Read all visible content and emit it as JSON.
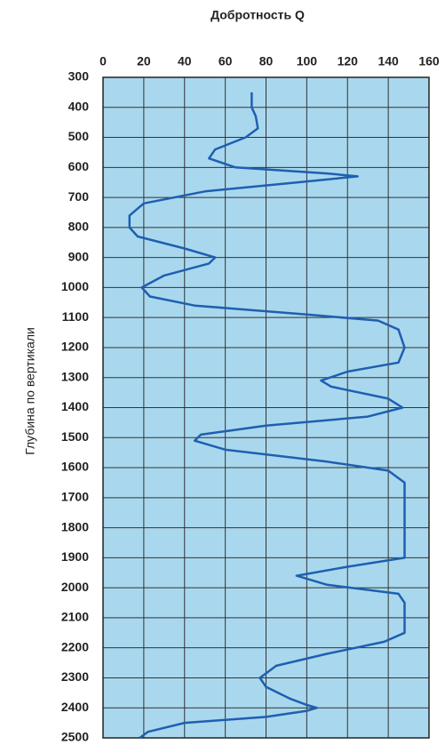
{
  "chart_data": {
    "type": "line",
    "title": "Добротность Q",
    "y_label": "Глубина по вертикали",
    "xlim": [
      0,
      160
    ],
    "xticks": [
      0,
      20,
      40,
      60,
      80,
      100,
      120,
      140,
      160
    ],
    "ylim": [
      300,
      2500
    ],
    "yticks": [
      300,
      400,
      500,
      600,
      700,
      800,
      900,
      1000,
      1100,
      1200,
      1300,
      1400,
      1500,
      1600,
      1700,
      1800,
      1900,
      2000,
      2100,
      2200,
      2300,
      2400,
      2500
    ],
    "y_inverted": true,
    "grid": true,
    "background": "#a9d8ee",
    "y": [
      350,
      400,
      430,
      470,
      500,
      540,
      570,
      600,
      620,
      630,
      650,
      680,
      720,
      760,
      800,
      830,
      870,
      900,
      920,
      960,
      1000,
      1030,
      1060,
      1090,
      1110,
      1140,
      1200,
      1250,
      1280,
      1310,
      1330,
      1370,
      1400,
      1430,
      1460,
      1490,
      1510,
      1540,
      1580,
      1610,
      1650,
      1900,
      1930,
      1960,
      1990,
      2020,
      2050,
      2150,
      2180,
      2220,
      2260,
      2300,
      2330,
      2370,
      2390,
      2400,
      2410,
      2430,
      2450,
      2480,
      2500
    ],
    "series": [
      {
        "color": "#1f5fb0",
        "values": [
          73,
          73,
          75,
          76,
          70,
          55,
          52,
          65,
          110,
          125,
          95,
          50,
          20,
          13,
          13,
          17,
          40,
          55,
          52,
          30,
          19,
          23,
          45,
          100,
          135,
          145,
          148,
          145,
          120,
          107,
          112,
          140,
          147,
          130,
          80,
          48,
          45,
          60,
          110,
          140,
          148,
          148,
          120,
          95,
          110,
          145,
          148,
          148,
          138,
          110,
          85,
          77,
          80,
          92,
          100,
          105,
          100,
          80,
          40,
          22,
          18
        ]
      }
    ]
  }
}
